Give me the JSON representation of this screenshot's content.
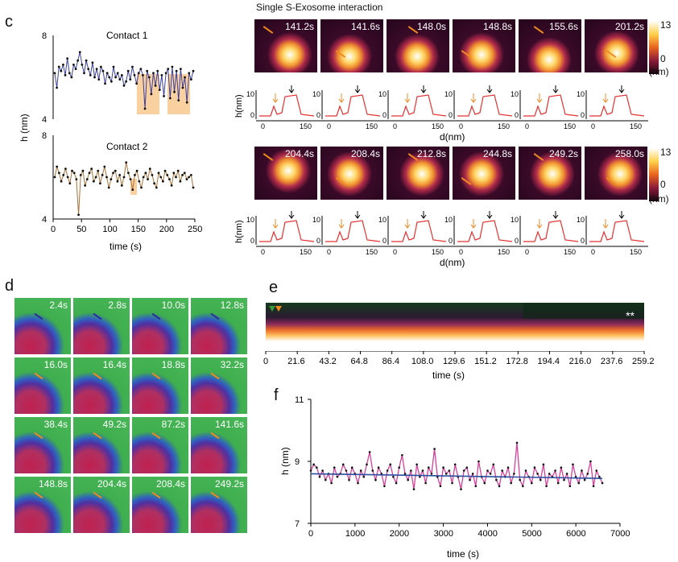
{
  "panel_c": {
    "letter": "c",
    "contact1": {
      "title": "Contact 1",
      "y_top": "8",
      "y_bottom": "4",
      "color": "#3b3f9e",
      "values": [
        6.2,
        5.5,
        6.5,
        6.3,
        6.6,
        6.1,
        6.9,
        6.2,
        6.0,
        6.6,
        6.4,
        6.8,
        7.2,
        6.6,
        6.2,
        6.8,
        6.4,
        6.1,
        6.7,
        6.0,
        6.4,
        5.9,
        6.5,
        6.3,
        5.7,
        6.2,
        6.0,
        5.8,
        6.5,
        6.0,
        6.2,
        5.9,
        6.1,
        5.6,
        5.8,
        6.3,
        5.9,
        6.5,
        6.1,
        5.7,
        6.2,
        6.4,
        6.1,
        4.5,
        6.3,
        6.0,
        5.2,
        6.2,
        5.6,
        6.3,
        5.4,
        6.1,
        5.1,
        6.2,
        6.4,
        5.0,
        6.5,
        5.3,
        6.3,
        4.9,
        6.4,
        5.5,
        6.0,
        4.8,
        6.2,
        5.9,
        6.3
      ]
    },
    "contact2": {
      "title": "Contact 2",
      "y_top": "8",
      "y_bottom": "4",
      "color": "#a8743a",
      "values": [
        6.0,
        6.5,
        6.2,
        5.8,
        6.1,
        6.4,
        6.0,
        5.7,
        6.3,
        6.2,
        5.9,
        4.2,
        6.1,
        6.3,
        5.6,
        5.9,
        6.2,
        6.4,
        5.8,
        6.0,
        6.3,
        5.7,
        6.1,
        6.5,
        6.0,
        5.5,
        5.9,
        6.2,
        6.3,
        5.8,
        6.1,
        5.6,
        6.0,
        6.7,
        6.2,
        5.9,
        5.4,
        6.1,
        6.3,
        5.8,
        5.5,
        6.0,
        6.2,
        5.9,
        6.4,
        6.1,
        5.7,
        5.5,
        6.2,
        6.0,
        5.8,
        6.3,
        6.1,
        5.9,
        5.6,
        6.2,
        6.0,
        6.3,
        5.8,
        6.1,
        6.2,
        5.9,
        6.0,
        6.1,
        5.5
      ]
    },
    "x_ticks": [
      "0",
      "50",
      "100",
      "150",
      "200",
      "250"
    ],
    "xlabel": "time (s)",
    "ylabel": "h (nm)"
  },
  "afm": {
    "title": "Single S-Exosome interaction",
    "row1_times": [
      "141.2s",
      "141.6s",
      "148.0s",
      "148.8s",
      "155.6s",
      "201.2s"
    ],
    "row2_times": [
      "204.4s",
      "208.4s",
      "212.8s",
      "244.8s",
      "249.2s",
      "258.0s"
    ],
    "scale_top": "13",
    "scale_bottom": "0",
    "scale_unit": "(nm)",
    "profile_ylabel": "h(nm)",
    "profile_y_ticks": [
      "10",
      "0"
    ],
    "profile_x_ticks": [
      "0",
      "150"
    ],
    "profile_xlabel": "d(nm)"
  },
  "panel_d": {
    "letter": "d",
    "times": [
      "2.4s",
      "2.8s",
      "10.0s",
      "12.8s",
      "16.0s",
      "16.4s",
      "18.8s",
      "32.2s",
      "38.4s",
      "49.2s",
      "87.2s",
      "141.6s",
      "148.8s",
      "204.4s",
      "208.4s",
      "249.2s"
    ]
  },
  "panel_e": {
    "letter": "e",
    "marker": "**",
    "x_ticks": [
      "0",
      "21.6",
      "43.2",
      "64.8",
      "86.4",
      "108.0",
      "129.6",
      "151.2",
      "172.8",
      "194.4",
      "216.0",
      "237.6",
      "259.2"
    ],
    "xlabel": "time (s)"
  },
  "panel_f": {
    "letter": "f",
    "y_ticks": [
      "11",
      "9",
      "7"
    ],
    "x_ticks": [
      "0",
      "1000",
      "2000",
      "3000",
      "4000",
      "5000",
      "6000",
      "7000"
    ],
    "xlabel": "time (s)",
    "ylabel": "h (nm)"
  },
  "chart_data": [
    {
      "type": "line",
      "title": "Contact 1",
      "xlabel": "time (s)",
      "ylabel": "h (nm)",
      "xlim": [
        0,
        250
      ],
      "ylim": [
        4,
        8
      ]
    },
    {
      "type": "line",
      "title": "Contact 2",
      "xlabel": "time (s)",
      "ylabel": "h (nm)",
      "xlim": [
        0,
        250
      ],
      "ylim": [
        4,
        8
      ]
    },
    {
      "type": "line",
      "xlabel": "time (s)",
      "ylabel": "h (nm)",
      "xlim": [
        0,
        7000
      ],
      "ylim": [
        7,
        11
      ],
      "series": [
        {
          "color": "#d4409a",
          "values": [
            8.7,
            8.9,
            8.8,
            8.5,
            8.7,
            8.4,
            8.6,
            8.3,
            8.8,
            8.5,
            8.6,
            8.9,
            8.7,
            8.4,
            8.8,
            8.6,
            8.3,
            8.7,
            8.5,
            8.9,
            9.3,
            8.7,
            8.4,
            8.8,
            8.6,
            8.2,
            8.7,
            8.9,
            8.5,
            8.3,
            8.8,
            9.2,
            8.6,
            8.4,
            8.7,
            8.1,
            8.9,
            8.5,
            8.7,
            8.3,
            8.8,
            8.6,
            9.4,
            8.5,
            8.2,
            8.8,
            8.6,
            8.7,
            8.3,
            8.9,
            8.5,
            8.1,
            8.7,
            8.8,
            8.4,
            8.6,
            8.2,
            9.0,
            8.5,
            8.3,
            8.7,
            8.6,
            8.9,
            8.4,
            8.2,
            8.7,
            8.5,
            8.8,
            8.3,
            8.6,
            9.6,
            8.4,
            8.2,
            8.7,
            8.5,
            8.3,
            8.8,
            8.6,
            8.4,
            8.9,
            8.2,
            8.6,
            8.5,
            8.7,
            8.3,
            8.8,
            8.4,
            8.6,
            8.2,
            8.9,
            8.5,
            8.3,
            8.7,
            8.4,
            8.6,
            9.0,
            8.2,
            8.7,
            8.5,
            8.3
          ]
        },
        {
          "color": "#2b4fa0",
          "values": [
            8.6,
            8.45
          ]
        }
      ]
    }
  ]
}
